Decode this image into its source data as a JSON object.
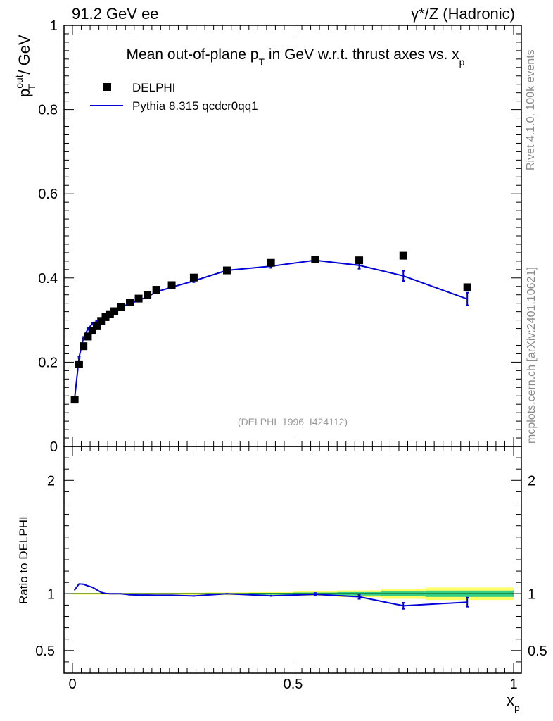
{
  "header": {
    "left": "91.2 GeV ee",
    "right": "γ*/Z (Hadronic)"
  },
  "side_labels": {
    "rivet": "Rivet 4.1.0,  100k events",
    "mcplots": "mcplots.cern.ch [arXiv:2401.10621]"
  },
  "colors": {
    "mc": "#0000dd",
    "data": "#000000",
    "band_inner": "#33cc88",
    "band_outer": "#ffff66",
    "ref_line": "#00aa00",
    "watermark": "#999999"
  },
  "chart_data": [
    {
      "type": "scatter",
      "title": "Mean out-of-plane p_T in GeV w.r.t. thrust axes vs. x_p",
      "title_parts": {
        "a": "Mean out-of-plane p",
        "sub1": "T",
        "b": " in GeV w.r.t. thrust axes vs. x",
        "sub2": "p"
      },
      "ylabel": "p_T^out / GeV",
      "ylabel_parts": {
        "main": "p",
        "sup": "out",
        "sub": "T",
        "rest": " / GeV"
      },
      "xlabel": "x_p",
      "xlim": [
        0,
        1
      ],
      "ylim": [
        0,
        1
      ],
      "yticks": [
        "0",
        "0.2",
        "0.4",
        "0.6",
        "0.8",
        "1"
      ],
      "xticks": [
        "0",
        "0.5",
        "1"
      ],
      "watermark": "(DELPHI_1996_I424112)",
      "legend": [
        "DELPHI",
        "Pythia 8.315 qcdcr0qq1"
      ],
      "series": [
        {
          "name": "DELPHI",
          "x": [
            0.005,
            0.015,
            0.025,
            0.035,
            0.045,
            0.055,
            0.065,
            0.075,
            0.085,
            0.095,
            0.11,
            0.13,
            0.15,
            0.17,
            0.19,
            0.225,
            0.275,
            0.35,
            0.45,
            0.55,
            0.65,
            0.75,
            0.895
          ],
          "values": [
            0.111,
            0.195,
            0.238,
            0.261,
            0.275,
            0.287,
            0.298,
            0.307,
            0.314,
            0.321,
            0.331,
            0.342,
            0.351,
            0.359,
            0.372,
            0.383,
            0.401,
            0.418,
            0.436,
            0.444,
            0.442,
            0.453,
            0.378
          ]
        },
        {
          "name": "Pythia 8.315 qcdcr0qq1",
          "x": [
            0.005,
            0.015,
            0.025,
            0.035,
            0.045,
            0.055,
            0.065,
            0.075,
            0.085,
            0.095,
            0.11,
            0.13,
            0.15,
            0.17,
            0.19,
            0.225,
            0.275,
            0.35,
            0.45,
            0.55,
            0.65,
            0.75,
            0.895
          ],
          "values": [
            0.115,
            0.212,
            0.258,
            0.279,
            0.291,
            0.297,
            0.302,
            0.308,
            0.314,
            0.321,
            0.331,
            0.339,
            0.347,
            0.355,
            0.367,
            0.378,
            0.393,
            0.418,
            0.428,
            0.442,
            0.43,
            0.405,
            0.35
          ],
          "errors": [
            0.002,
            0.002,
            0.002,
            0.002,
            0.002,
            0.002,
            0.002,
            0.002,
            0.002,
            0.002,
            0.002,
            0.002,
            0.002,
            0.002,
            0.002,
            0.003,
            0.003,
            0.003,
            0.004,
            0.005,
            0.008,
            0.012,
            0.015
          ]
        }
      ]
    },
    {
      "type": "line",
      "ylabel": "Ratio to DELPHI",
      "xlim": [
        0,
        1
      ],
      "ylim": [
        0.3,
        2.3
      ],
      "yticks": [
        "0.5",
        "1",
        "2"
      ],
      "series": [
        {
          "name": "Pythia 8.315 qcdcr0qq1 / DELPHI",
          "x": [
            0.005,
            0.015,
            0.025,
            0.035,
            0.045,
            0.055,
            0.065,
            0.075,
            0.085,
            0.095,
            0.11,
            0.13,
            0.15,
            0.17,
            0.19,
            0.225,
            0.275,
            0.35,
            0.45,
            0.55,
            0.65,
            0.75,
            0.895
          ],
          "values": [
            1.035,
            1.087,
            1.084,
            1.069,
            1.058,
            1.035,
            1.013,
            1.003,
            1.0,
            1.0,
            1.0,
            0.991,
            0.989,
            0.989,
            0.987,
            0.987,
            0.981,
            1.0,
            0.982,
            0.995,
            0.973,
            0.894,
            0.926
          ],
          "errors": [
            0.005,
            0.005,
            0.005,
            0.005,
            0.005,
            0.005,
            0.005,
            0.005,
            0.005,
            0.005,
            0.005,
            0.005,
            0.005,
            0.005,
            0.005,
            0.006,
            0.006,
            0.007,
            0.008,
            0.012,
            0.018,
            0.027,
            0.04
          ]
        }
      ],
      "uncertainty_bands": {
        "x_edges": [
          0.0,
          0.01,
          0.02,
          0.03,
          0.04,
          0.05,
          0.06,
          0.07,
          0.08,
          0.09,
          0.1,
          0.12,
          0.14,
          0.16,
          0.18,
          0.2,
          0.25,
          0.3,
          0.4,
          0.5,
          0.6,
          0.7,
          0.8,
          1.0
        ],
        "inner": [
          0.004,
          0.004,
          0.004,
          0.004,
          0.004,
          0.004,
          0.004,
          0.004,
          0.004,
          0.004,
          0.004,
          0.004,
          0.004,
          0.004,
          0.004,
          0.005,
          0.005,
          0.006,
          0.008,
          0.011,
          0.015,
          0.02,
          0.028
        ],
        "outer": [
          0.008,
          0.008,
          0.008,
          0.008,
          0.008,
          0.008,
          0.008,
          0.008,
          0.008,
          0.008,
          0.008,
          0.008,
          0.008,
          0.008,
          0.008,
          0.009,
          0.01,
          0.012,
          0.015,
          0.022,
          0.03,
          0.045,
          0.055
        ]
      }
    }
  ]
}
